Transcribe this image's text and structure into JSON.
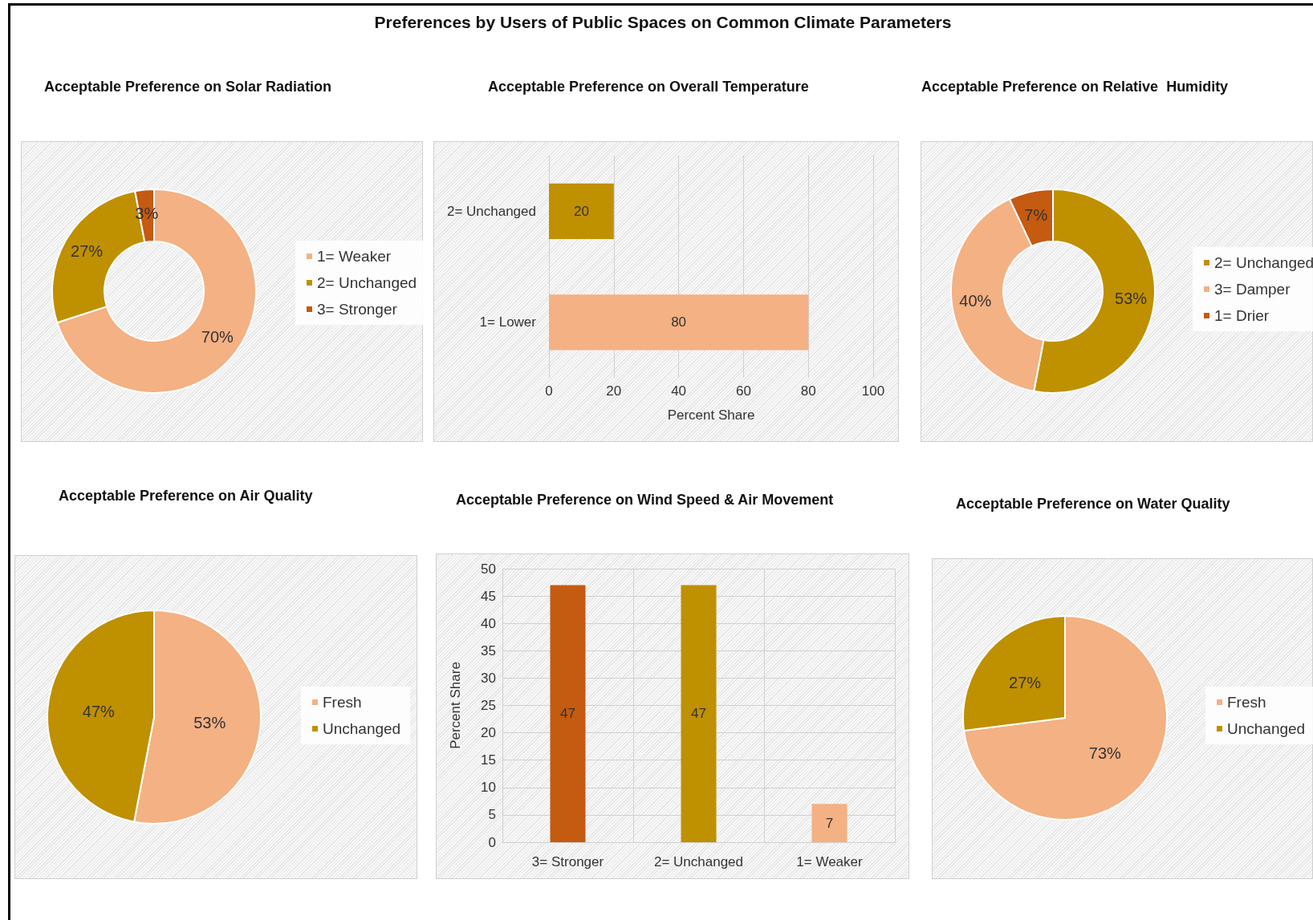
{
  "chart_data": [
    {
      "type": "other",
      "title": "Preferences by Users of Public Spaces on Common Climate Parameters"
    },
    {
      "type": "donut",
      "title": "Acceptable Preference on Solar Radiation",
      "categories": [
        "1= Weaker",
        "2= Unchanged",
        "3= Stronger"
      ],
      "values": [
        70,
        27,
        3
      ],
      "colors": [
        "#f4b183",
        "#bf9000",
        "#c55a11"
      ],
      "value_labels": [
        "70%",
        "27%",
        "3%"
      ],
      "legend": "right"
    },
    {
      "type": "bar",
      "title": "Acceptable Preference on Overall Temperature",
      "orientation": "horizontal",
      "categories": [
        "2= Unchanged",
        "1= Lower"
      ],
      "values": [
        20,
        80
      ],
      "colors": [
        "#bf9000",
        "#f4b183"
      ],
      "xlim": [
        0,
        100
      ],
      "xticks": [
        0,
        20,
        40,
        60,
        80,
        100
      ],
      "xlabel": "Percent Share",
      "data_labels": true,
      "grid": "x"
    },
    {
      "type": "donut",
      "title": "Acceptable Preference on Relative  Humidity",
      "categories": [
        "2= Unchanged",
        "3= Damper",
        "1= Drier"
      ],
      "values": [
        53,
        40,
        7
      ],
      "colors": [
        "#bf9000",
        "#f4b183",
        "#c55a11"
      ],
      "value_labels": [
        "53%",
        "40%",
        "7%"
      ],
      "legend": "right"
    },
    {
      "type": "pie",
      "title": "Acceptable Preference on Air Quality",
      "categories": [
        "Fresh",
        "Unchanged"
      ],
      "values": [
        53,
        47
      ],
      "colors": [
        "#f4b183",
        "#bf9000"
      ],
      "value_labels": [
        "53%",
        "47%"
      ],
      "legend": "right"
    },
    {
      "type": "bar",
      "title": "Acceptable Preference on Wind Speed & Air Movement",
      "categories": [
        "3= Stronger",
        "2= Unchanged",
        "1= Weaker"
      ],
      "values": [
        47,
        47,
        7
      ],
      "colors": [
        "#c55a11",
        "#bf9000",
        "#f4b183"
      ],
      "ylim": [
        0,
        50
      ],
      "yticks": [
        0,
        5,
        10,
        15,
        20,
        25,
        30,
        35,
        40,
        45,
        50
      ],
      "ylabel": "Percent Share",
      "data_labels": true,
      "grid": true
    },
    {
      "type": "pie",
      "title": "Acceptable Preference on Water Quality",
      "categories": [
        "Fresh",
        "Unchanged"
      ],
      "values": [
        73,
        27
      ],
      "colors": [
        "#f4b183",
        "#bf9000"
      ],
      "value_labels": [
        "73%",
        "27%"
      ],
      "legend": "right"
    }
  ]
}
